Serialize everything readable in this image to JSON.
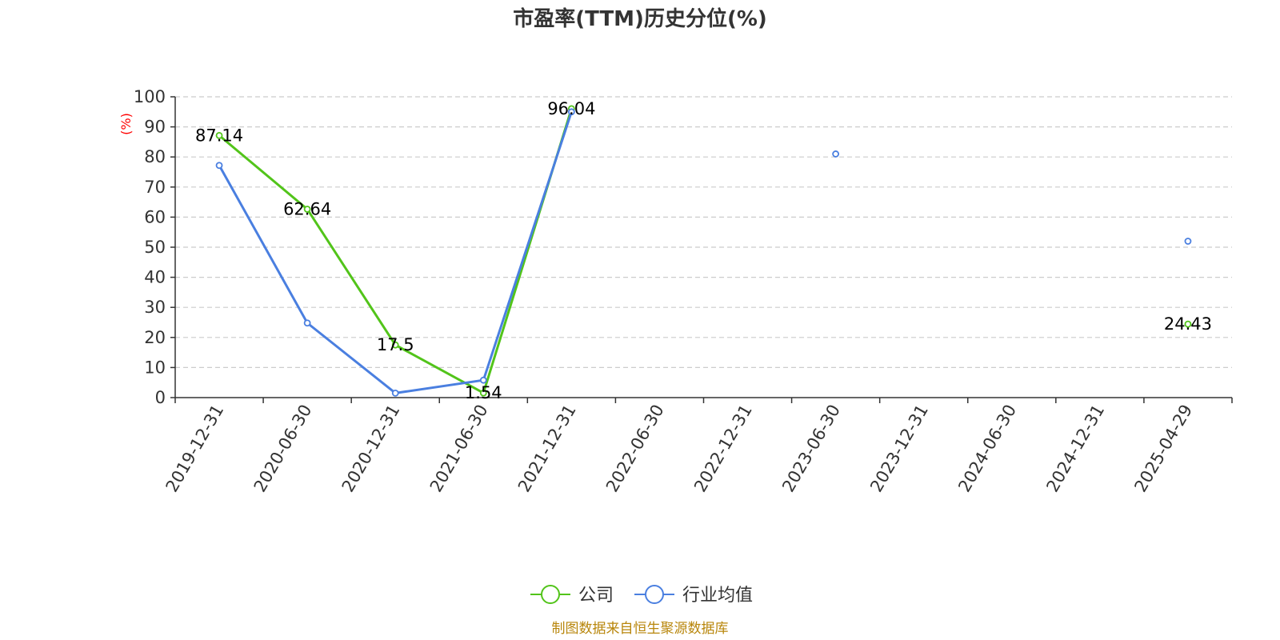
{
  "title": "市盈率(TTM)历史分位(%)",
  "source": "制图数据来自恒生聚源数据库",
  "colors": {
    "company": "#52c41a",
    "industry": "#4a7fe0",
    "grid": "#cccccc",
    "axis": "#333333",
    "unit": "#ff0000",
    "source": "#b8860b"
  },
  "chart_data": {
    "type": "line",
    "title": "市盈率(TTM)历史分位(%)",
    "ylabel": "(%)",
    "ylim": [
      0,
      100
    ],
    "yticks": [
      0,
      10,
      20,
      30,
      40,
      50,
      60,
      70,
      80,
      90,
      100
    ],
    "grid": true,
    "legend_placement": "bottom",
    "categories": [
      "2019-12-31",
      "2020-06-30",
      "2020-12-31",
      "2021-06-30",
      "2021-12-31",
      "2022-06-30",
      "2022-12-31",
      "2023-06-30",
      "2023-12-31",
      "2024-06-30",
      "2024-12-31",
      "2025-04-29"
    ],
    "series": [
      {
        "name": "公司",
        "values": [
          87.14,
          62.64,
          17.5,
          1.54,
          96.04,
          null,
          null,
          null,
          null,
          null,
          null,
          24.43
        ],
        "labeled": true
      },
      {
        "name": "行业均值",
        "values": [
          77.2,
          24.8,
          1.5,
          5.8,
          95.0,
          null,
          null,
          81.0,
          null,
          null,
          null,
          52.0
        ],
        "labeled": false
      }
    ]
  }
}
